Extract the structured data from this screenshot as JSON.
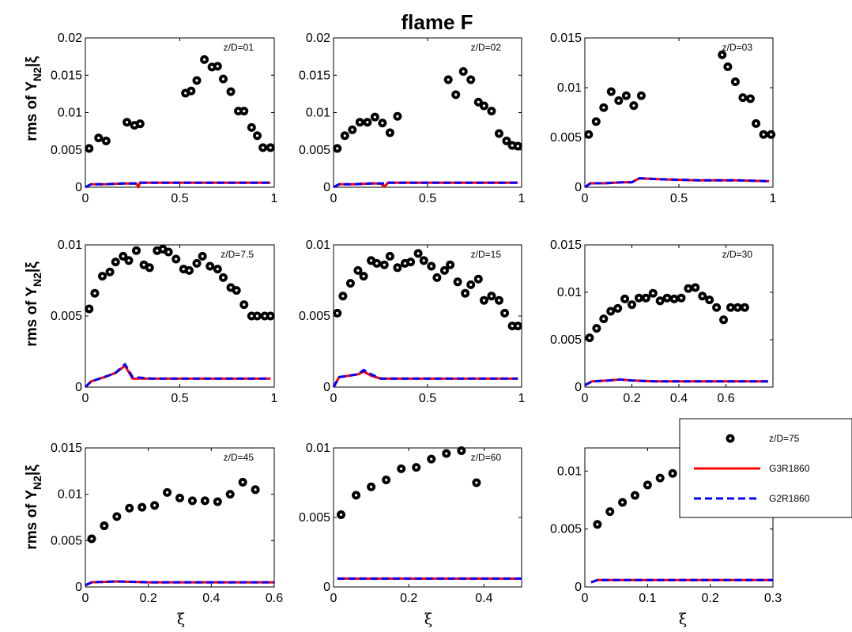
{
  "figure": {
    "title": "flame F"
  },
  "y_axis_label": {
    "main": "rms of Y",
    "sub": "N2",
    "tail": "|ξ"
  },
  "x_axis_label": "ξ",
  "legend": {
    "entries": [
      {
        "label": "z/D=75",
        "style": "marker"
      },
      {
        "label": "G3R1860",
        "style": "solid",
        "color": "#ff0000"
      },
      {
        "label": "G2R1860",
        "style": "dashed",
        "color": "#0000ff"
      }
    ]
  },
  "chart_data": [
    {
      "type": "scatter",
      "annotation": "z/D=01",
      "xlim": [
        0,
        1
      ],
      "ylim": [
        0,
        0.02
      ],
      "xticks": [
        0,
        0.5,
        1
      ],
      "xtick_labels": [
        "0",
        "0.5",
        "1"
      ],
      "yticks": [
        0,
        0.005,
        0.01,
        0.015,
        0.02
      ],
      "ytick_labels": [
        "0",
        "0.005",
        "0.01",
        "0.015",
        "0.02"
      ],
      "measured": {
        "x": [
          0.02,
          0.07,
          0.11,
          0.22,
          0.26,
          0.29,
          0.53,
          0.56,
          0.59,
          0.63,
          0.67,
          0.7,
          0.73,
          0.77,
          0.81,
          0.84,
          0.88,
          0.91,
          0.94,
          0.98
        ],
        "y": [
          0.0052,
          0.0066,
          0.0062,
          0.0087,
          0.0083,
          0.0085,
          0.0126,
          0.0129,
          0.0143,
          0.0171,
          0.0161,
          0.0162,
          0.0145,
          0.0128,
          0.0102,
          0.0102,
          0.008,
          0.0069,
          0.0053,
          0.0053
        ]
      },
      "series": [
        {
          "name": "G3R1860",
          "x": [
            0,
            0.03,
            0.1,
            0.2,
            0.27,
            0.28,
            0.29,
            0.4,
            0.6,
            0.8,
            0.98
          ],
          "y": [
            0,
            0.0004,
            0.0004,
            0.0005,
            0.0005,
            0.0001,
            0.0006,
            0.0006,
            0.0006,
            0.0006,
            0.0006
          ]
        },
        {
          "name": "G2R1860",
          "x": [
            0,
            0.03,
            0.1,
            0.2,
            0.28,
            0.29,
            0.4,
            0.6,
            0.8,
            0.98
          ],
          "y": [
            0,
            0.0004,
            0.0004,
            0.0005,
            0.0005,
            0.0006,
            0.0006,
            0.0006,
            0.0006,
            0.0006
          ]
        }
      ]
    },
    {
      "type": "scatter",
      "annotation": "z/D=02",
      "xlim": [
        0,
        1
      ],
      "ylim": [
        0,
        0.02
      ],
      "xticks": [
        0,
        0.5,
        1
      ],
      "xtick_labels": [
        "0",
        "0.5",
        "1"
      ],
      "yticks": [
        0,
        0.005,
        0.01,
        0.015,
        0.02
      ],
      "ytick_labels": [
        "0",
        "0.005",
        "0.01",
        "0.015",
        "0.02"
      ],
      "measured": {
        "x": [
          0.02,
          0.06,
          0.1,
          0.14,
          0.18,
          0.22,
          0.26,
          0.3,
          0.34,
          0.61,
          0.65,
          0.69,
          0.73,
          0.77,
          0.8,
          0.84,
          0.88,
          0.92,
          0.95,
          0.98
        ],
        "y": [
          0.0052,
          0.0069,
          0.0077,
          0.0087,
          0.0087,
          0.0094,
          0.0086,
          0.0073,
          0.0095,
          0.0144,
          0.0124,
          0.0155,
          0.0144,
          0.0114,
          0.0109,
          0.0102,
          0.0072,
          0.0062,
          0.0056,
          0.0055
        ]
      },
      "series": [
        {
          "name": "G3R1860",
          "x": [
            0,
            0.03,
            0.1,
            0.2,
            0.25,
            0.27,
            0.29,
            0.4,
            0.6,
            0.8,
            0.98
          ],
          "y": [
            0,
            0.0004,
            0.0004,
            0.0005,
            0.0005,
            0.0001,
            0.0006,
            0.0006,
            0.0006,
            0.0006,
            0.0006
          ]
        },
        {
          "name": "G2R1860",
          "x": [
            0,
            0.03,
            0.1,
            0.2,
            0.27,
            0.29,
            0.4,
            0.6,
            0.8,
            0.98
          ],
          "y": [
            0,
            0.0004,
            0.0004,
            0.0005,
            0.0005,
            0.0006,
            0.0006,
            0.0006,
            0.0006,
            0.0006
          ]
        }
      ]
    },
    {
      "type": "scatter",
      "annotation": "z/D=03",
      "xlim": [
        0,
        1
      ],
      "ylim": [
        0,
        0.015
      ],
      "xticks": [
        0,
        0.5,
        1
      ],
      "xtick_labels": [
        "0",
        "0.5",
        "1"
      ],
      "yticks": [
        0,
        0.005,
        0.01,
        0.015
      ],
      "ytick_labels": [
        "0",
        "0.005",
        "0.01",
        "0.015"
      ],
      "measured": {
        "x": [
          0.02,
          0.06,
          0.1,
          0.14,
          0.18,
          0.22,
          0.26,
          0.3,
          0.73,
          0.76,
          0.8,
          0.84,
          0.88,
          0.91,
          0.95,
          0.99
        ],
        "y": [
          0.0053,
          0.0066,
          0.008,
          0.0096,
          0.0087,
          0.0092,
          0.0082,
          0.0092,
          0.0133,
          0.0121,
          0.0106,
          0.009,
          0.0089,
          0.0064,
          0.0053,
          0.0053
        ]
      },
      "series": [
        {
          "name": "G3R1860",
          "x": [
            0,
            0.03,
            0.1,
            0.2,
            0.25,
            0.29,
            0.4,
            0.6,
            0.8,
            0.98
          ],
          "y": [
            0,
            0.0004,
            0.0004,
            0.0005,
            0.0005,
            0.0009,
            0.0008,
            0.0007,
            0.0007,
            0.0006
          ]
        },
        {
          "name": "G2R1860",
          "x": [
            0,
            0.03,
            0.1,
            0.2,
            0.25,
            0.29,
            0.4,
            0.6,
            0.8,
            0.98
          ],
          "y": [
            0,
            0.0004,
            0.0004,
            0.0005,
            0.0005,
            0.0009,
            0.0008,
            0.0007,
            0.0007,
            0.0006
          ]
        }
      ]
    },
    {
      "type": "scatter",
      "annotation": "z/D=7.5",
      "xlim": [
        0,
        1
      ],
      "ylim": [
        0,
        0.01
      ],
      "xticks": [
        0,
        0.5,
        1
      ],
      "xtick_labels": [
        "0",
        "0.5",
        "1"
      ],
      "yticks": [
        0,
        0.005,
        0.01
      ],
      "ytick_labels": [
        "0",
        "0.005",
        "0.01"
      ],
      "measured": {
        "x": [
          0.02,
          0.05,
          0.09,
          0.13,
          0.16,
          0.2,
          0.23,
          0.27,
          0.31,
          0.34,
          0.38,
          0.41,
          0.44,
          0.48,
          0.52,
          0.55,
          0.59,
          0.62,
          0.66,
          0.7,
          0.73,
          0.77,
          0.8,
          0.84,
          0.88,
          0.91,
          0.95,
          0.98
        ],
        "y": [
          0.0055,
          0.0066,
          0.0078,
          0.0081,
          0.0088,
          0.0092,
          0.0089,
          0.0096,
          0.0086,
          0.0084,
          0.0096,
          0.0097,
          0.0095,
          0.009,
          0.0083,
          0.0082,
          0.0087,
          0.0092,
          0.0085,
          0.0083,
          0.0077,
          0.007,
          0.0068,
          0.0058,
          0.005,
          0.005,
          0.005,
          0.005
        ]
      },
      "series": [
        {
          "name": "G3R1860",
          "x": [
            0,
            0.03,
            0.1,
            0.16,
            0.21,
            0.25,
            0.35,
            0.5,
            0.7,
            0.98
          ],
          "y": [
            0,
            0.0004,
            0.0007,
            0.001,
            0.0015,
            0.0006,
            0.0006,
            0.0006,
            0.0006,
            0.0006
          ]
        },
        {
          "name": "G2R1860",
          "x": [
            0,
            0.03,
            0.1,
            0.16,
            0.21,
            0.25,
            0.35,
            0.5,
            0.7,
            0.98
          ],
          "y": [
            0,
            0.0004,
            0.0007,
            0.001,
            0.0016,
            0.0007,
            0.0006,
            0.0006,
            0.0006,
            0.0006
          ]
        }
      ]
    },
    {
      "type": "scatter",
      "annotation": "z/D=15",
      "xlim": [
        0,
        1
      ],
      "ylim": [
        0,
        0.01
      ],
      "xticks": [
        0,
        0.5,
        1
      ],
      "xtick_labels": [
        "0",
        "0.5",
        "1"
      ],
      "yticks": [
        0,
        0.005,
        0.01
      ],
      "ytick_labels": [
        "0",
        "0.005",
        "0.01"
      ],
      "measured": {
        "x": [
          0.02,
          0.05,
          0.09,
          0.13,
          0.16,
          0.2,
          0.23,
          0.27,
          0.3,
          0.34,
          0.38,
          0.41,
          0.45,
          0.48,
          0.52,
          0.55,
          0.59,
          0.62,
          0.66,
          0.7,
          0.73,
          0.77,
          0.8,
          0.84,
          0.88,
          0.91,
          0.95,
          0.98
        ],
        "y": [
          0.0052,
          0.0064,
          0.0073,
          0.0082,
          0.0078,
          0.0089,
          0.0087,
          0.0086,
          0.0092,
          0.0084,
          0.0087,
          0.0088,
          0.0094,
          0.0089,
          0.0085,
          0.0077,
          0.0082,
          0.0086,
          0.0074,
          0.0066,
          0.0072,
          0.0076,
          0.0061,
          0.0064,
          0.0061,
          0.0052,
          0.0043,
          0.0043
        ]
      },
      "series": [
        {
          "name": "G3R1860",
          "x": [
            0,
            0.03,
            0.08,
            0.13,
            0.16,
            0.2,
            0.25,
            0.4,
            0.6,
            0.98
          ],
          "y": [
            0,
            0.0007,
            0.0008,
            0.0009,
            0.0011,
            0.0008,
            0.0006,
            0.0006,
            0.0006,
            0.0006
          ]
        },
        {
          "name": "G2R1860",
          "x": [
            0,
            0.03,
            0.08,
            0.13,
            0.16,
            0.2,
            0.25,
            0.4,
            0.6,
            0.98
          ],
          "y": [
            0,
            0.0007,
            0.0008,
            0.0009,
            0.0012,
            0.0009,
            0.0006,
            0.0006,
            0.0006,
            0.0006
          ]
        }
      ]
    },
    {
      "type": "scatter",
      "annotation": "z/D=30",
      "xlim": [
        0,
        0.8
      ],
      "ylim": [
        0,
        0.015
      ],
      "xticks": [
        0,
        0.2,
        0.4,
        0.6
      ],
      "xtick_labels": [
        "0",
        "0.2",
        "0.4",
        "0.6"
      ],
      "yticks": [
        0,
        0.005,
        0.01,
        0.015
      ],
      "ytick_labels": [
        "0",
        "0.005",
        "0.01",
        "0.015"
      ],
      "measured": {
        "x": [
          0.02,
          0.05,
          0.08,
          0.11,
          0.14,
          0.17,
          0.2,
          0.23,
          0.26,
          0.29,
          0.32,
          0.35,
          0.38,
          0.41,
          0.44,
          0.47,
          0.5,
          0.53,
          0.56,
          0.59,
          0.62,
          0.65,
          0.68
        ],
        "y": [
          0.0052,
          0.0062,
          0.0072,
          0.008,
          0.0083,
          0.0093,
          0.0087,
          0.0094,
          0.0094,
          0.0099,
          0.0091,
          0.0094,
          0.0093,
          0.0094,
          0.0104,
          0.0105,
          0.0096,
          0.0092,
          0.0084,
          0.0071,
          0.0084,
          0.0084,
          0.0084
        ]
      },
      "series": [
        {
          "name": "G3R1860",
          "x": [
            0,
            0.03,
            0.1,
            0.15,
            0.2,
            0.3,
            0.5,
            0.78
          ],
          "y": [
            0.0002,
            0.0006,
            0.0007,
            0.0008,
            0.0007,
            0.0006,
            0.0006,
            0.0006
          ]
        },
        {
          "name": "G2R1860",
          "x": [
            0,
            0.03,
            0.1,
            0.15,
            0.2,
            0.3,
            0.5,
            0.78
          ],
          "y": [
            0.0002,
            0.0006,
            0.0007,
            0.0008,
            0.0007,
            0.0006,
            0.0006,
            0.0006
          ]
        }
      ]
    },
    {
      "type": "scatter",
      "annotation": "z/D=45",
      "xlim": [
        0,
        0.6
      ],
      "ylim": [
        0,
        0.015
      ],
      "xticks": [
        0,
        0.2,
        0.4,
        0.6
      ],
      "xtick_labels": [
        "0",
        "0.2",
        "0.4",
        "0.6"
      ],
      "yticks": [
        0,
        0.005,
        0.01,
        0.015
      ],
      "ytick_labels": [
        "0",
        "0.005",
        "0.01",
        "0.015"
      ],
      "measured": {
        "x": [
          0.02,
          0.06,
          0.1,
          0.14,
          0.18,
          0.22,
          0.26,
          0.3,
          0.34,
          0.38,
          0.42,
          0.46,
          0.5,
          0.54
        ],
        "y": [
          0.0052,
          0.0066,
          0.0076,
          0.0085,
          0.0086,
          0.0088,
          0.0102,
          0.0096,
          0.0093,
          0.0093,
          0.0092,
          0.01,
          0.0113,
          0.0105
        ]
      },
      "series": [
        {
          "name": "G3R1860",
          "x": [
            0,
            0.02,
            0.1,
            0.2,
            0.3,
            0.45,
            0.6
          ],
          "y": [
            0.0002,
            0.0005,
            0.0006,
            0.0005,
            0.0005,
            0.0005,
            0.0005
          ]
        },
        {
          "name": "G2R1860",
          "x": [
            0,
            0.02,
            0.1,
            0.2,
            0.3,
            0.45,
            0.6
          ],
          "y": [
            0.0002,
            0.0005,
            0.0006,
            0.0005,
            0.0005,
            0.0005,
            0.0005
          ]
        }
      ]
    },
    {
      "type": "scatter",
      "annotation": "z/D=60",
      "xlim": [
        0,
        0.5
      ],
      "ylim": [
        0,
        0.01
      ],
      "xticks": [
        0,
        0.2,
        0.4
      ],
      "xtick_labels": [
        "0",
        "0.2",
        "0.4"
      ],
      "yticks": [
        0,
        0.005,
        0.01
      ],
      "ytick_labels": [
        "0",
        "0.005",
        "0.01"
      ],
      "measured": {
        "x": [
          0.02,
          0.06,
          0.1,
          0.14,
          0.18,
          0.22,
          0.26,
          0.3,
          0.34,
          0.38
        ],
        "y": [
          0.0052,
          0.0066,
          0.0072,
          0.0077,
          0.0085,
          0.0086,
          0.0092,
          0.0096,
          0.0098,
          0.0075
        ]
      },
      "series": [
        {
          "name": "G3R1860",
          "x": [
            0.01,
            0.1,
            0.2,
            0.3,
            0.4,
            0.5
          ],
          "y": [
            0.0006,
            0.0006,
            0.0006,
            0.0006,
            0.0006,
            0.0006
          ]
        },
        {
          "name": "G2R1860",
          "x": [
            0.01,
            0.1,
            0.2,
            0.3,
            0.4,
            0.5
          ],
          "y": [
            0.0006,
            0.0006,
            0.0006,
            0.0006,
            0.0006,
            0.0006
          ]
        }
      ]
    },
    {
      "type": "scatter",
      "annotation": "",
      "xlim": [
        0,
        0.3
      ],
      "ylim": [
        0,
        0.012
      ],
      "xticks": [
        0,
        0.1,
        0.2,
        0.3
      ],
      "xtick_labels": [
        "0",
        "0.1",
        "0.2",
        "0.3"
      ],
      "yticks": [
        0,
        0.005,
        0.01
      ],
      "ytick_labels": [
        "0",
        "0.005",
        "0.01"
      ],
      "measured": {
        "x": [
          0.02,
          0.04,
          0.06,
          0.08,
          0.1,
          0.12,
          0.14
        ],
        "y": [
          0.0054,
          0.0065,
          0.0073,
          0.0079,
          0.0088,
          0.0094,
          0.0098
        ]
      },
      "series": [
        {
          "name": "G3R1860",
          "x": [
            0.01,
            0.02,
            0.1,
            0.2,
            0.3
          ],
          "y": [
            0.0004,
            0.0006,
            0.0006,
            0.0006,
            0.0006
          ]
        },
        {
          "name": "G2R1860",
          "x": [
            0.01,
            0.02,
            0.1,
            0.2,
            0.3
          ],
          "y": [
            0.0004,
            0.0006,
            0.0006,
            0.0006,
            0.0006
          ]
        }
      ]
    }
  ]
}
